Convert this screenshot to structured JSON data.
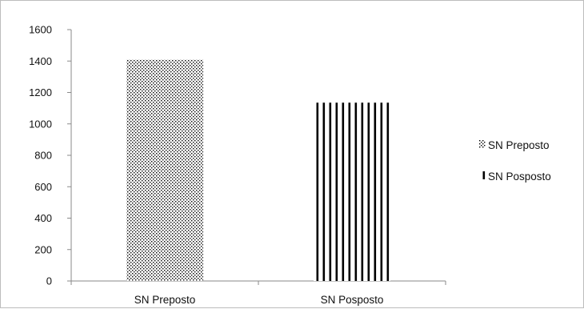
{
  "chart_data": {
    "type": "bar",
    "categories": [
      "SN Preposto",
      "SN Posposto"
    ],
    "series": [
      {
        "name": "SN Preposto",
        "pattern": "dots"
      },
      {
        "name": "SN Posposto",
        "pattern": "vertical-lines"
      }
    ],
    "values": [
      1410,
      1135
    ],
    "ylim": [
      0,
      1600
    ],
    "yticks": [
      0,
      200,
      400,
      600,
      800,
      1000,
      1200,
      1400,
      1600
    ],
    "grid": false,
    "legend_placement": "right",
    "colors": {
      "bar_pattern": "#000000",
      "bar_fill": "#ffffff",
      "axis": "#8a8a8a"
    }
  }
}
